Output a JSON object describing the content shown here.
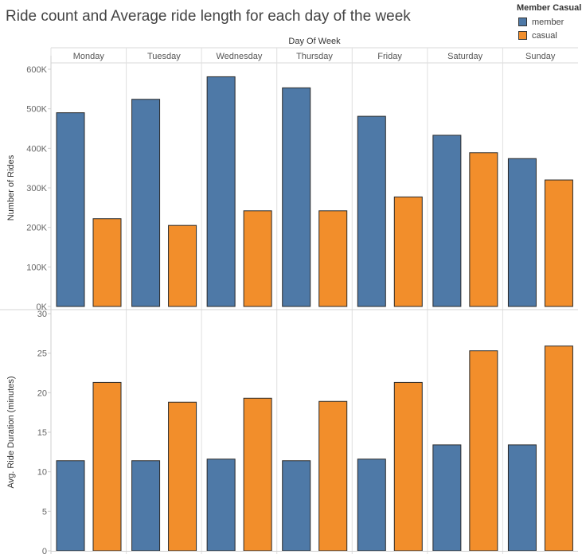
{
  "title": "Ride count and Average ride length for each day of the week",
  "legend": {
    "title": "Member Casual",
    "items": [
      {
        "name": "member",
        "color": "#4e79a7"
      },
      {
        "name": "casual",
        "color": "#f28e2b"
      }
    ]
  },
  "chart_data": [
    {
      "type": "bar",
      "xlabel": "Day Of Week",
      "ylabel": "Number of Rides",
      "categories": [
        "Monday",
        "Tuesday",
        "Wednesday",
        "Thursday",
        "Friday",
        "Saturday",
        "Sunday"
      ],
      "ylim": [
        0,
        600000
      ],
      "yticks": [
        0,
        100000,
        200000,
        300000,
        400000,
        500000,
        600000
      ],
      "yticklabels": [
        "0K",
        "100K",
        "200K",
        "300K",
        "400K",
        "500K",
        "600K"
      ],
      "series": [
        {
          "name": "member",
          "color": "#4e79a7",
          "values": [
            490000,
            524000,
            581000,
            553000,
            481000,
            433000,
            374000
          ]
        },
        {
          "name": "casual",
          "color": "#f28e2b",
          "values": [
            222000,
            205000,
            242000,
            242000,
            277000,
            389000,
            320000
          ]
        }
      ],
      "grid": false
    },
    {
      "type": "bar",
      "xlabel": "",
      "ylabel": "Avg. Ride Duration (minutes)",
      "categories": [
        "Monday",
        "Tuesday",
        "Wednesday",
        "Thursday",
        "Friday",
        "Saturday",
        "Sunday"
      ],
      "ylim": [
        0,
        30
      ],
      "yticks": [
        0,
        5,
        10,
        15,
        20,
        25,
        30
      ],
      "yticklabels": [
        "0",
        "5",
        "10",
        "15",
        "20",
        "25",
        "30"
      ],
      "series": [
        {
          "name": "member",
          "color": "#4e79a7",
          "values": [
            11.4,
            11.4,
            11.6,
            11.4,
            11.6,
            13.4,
            13.4
          ]
        },
        {
          "name": "casual",
          "color": "#f28e2b",
          "values": [
            21.3,
            18.8,
            19.3,
            18.9,
            21.3,
            25.3,
            25.9
          ]
        }
      ],
      "grid": false
    }
  ]
}
